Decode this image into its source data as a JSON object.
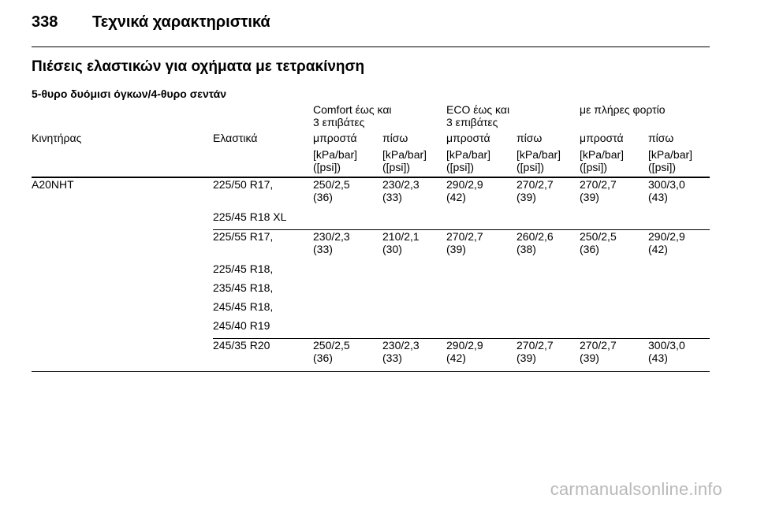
{
  "header": {
    "page_number": "338",
    "chapter_title": "Τεχνικά χαρακτηριστικά"
  },
  "section_title": "Πιέσεις ελαστικών για οχήματα με τετρακίνηση",
  "subsection_title": "5-θυρο δυόμισι όγκων/4-θυρο σεντάν",
  "table": {
    "group_headers": [
      "Comfort έως και\n3 επιβάτες",
      "ECO έως και\n3 επιβάτες",
      "με πλήρες φορτίο"
    ],
    "column_headers": [
      "Κινητήρας",
      "Ελαστικά",
      "μπροστά",
      "πίσω",
      "μπροστά",
      "πίσω",
      "μπροστά",
      "πίσω"
    ],
    "unit_label": "[kPa/bar]\n([psi])",
    "engine": "A20NHT",
    "groups": [
      {
        "tires": [
          "225/50 R17,",
          "225/45 R18 XL"
        ],
        "values": [
          "250/2,5\n(36)",
          "230/2,3\n(33)",
          "290/2,9\n(42)",
          "270/2,7\n(39)",
          "270/2,7\n(39)",
          "300/3,0\n(43)"
        ]
      },
      {
        "tires": [
          "225/55 R17,",
          "225/45 R18,",
          "235/45 R18,",
          "245/45 R18,",
          "245/40 R19"
        ],
        "values": [
          "230/2,3\n(33)",
          "210/2,1\n(30)",
          "270/2,7\n(39)",
          "260/2,6\n(38)",
          "250/2,5\n(36)",
          "290/2,9\n(42)"
        ]
      },
      {
        "tires": [
          "245/35 R20"
        ],
        "values": [
          "250/2,5\n(36)",
          "230/2,3\n(33)",
          "290/2,9\n(42)",
          "270/2,7\n(39)",
          "270/2,7\n(39)",
          "300/3,0\n(43)"
        ]
      }
    ]
  },
  "watermark": "carmanualsonline.info"
}
